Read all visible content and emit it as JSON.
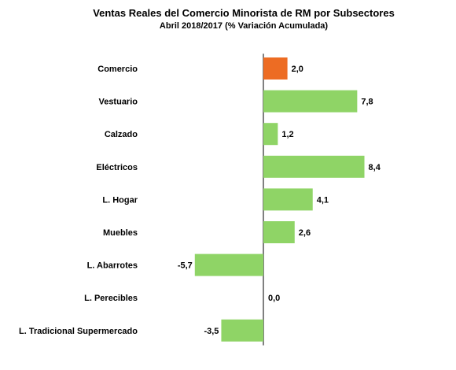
{
  "chart_data": {
    "type": "bar",
    "orientation": "horizontal",
    "title": "Ventas Reales del Comercio Minorista de RM por Subsectores",
    "subtitle": "Abril     2018/2017 (% Variación Acumulada)",
    "categories": [
      "Comercio",
      "Vestuario",
      "Calzado",
      "Eléctricos",
      "L. Hogar",
      "Muebles",
      "L. Abarrotes",
      "L. Perecibles",
      "L. Tradicional Supermercado"
    ],
    "values": [
      2.0,
      7.8,
      1.2,
      8.4,
      4.1,
      2.6,
      -5.7,
      0.0,
      -3.5
    ],
    "value_labels": [
      "2,0",
      "7,8",
      "1,2",
      "8,4",
      "4,1",
      "2,6",
      "-5,7",
      "0,0",
      "-3,5"
    ],
    "bar_colors": [
      "#ED6C23",
      "#8FD466",
      "#8FD466",
      "#8FD466",
      "#8FD466",
      "#8FD466",
      "#8FD466",
      "#8FD466",
      "#8FD466"
    ],
    "highlight_color": "#ED6C23",
    "default_color": "#8FD466",
    "xlim": [
      -10,
      10
    ],
    "grid": false,
    "legend": "none"
  }
}
